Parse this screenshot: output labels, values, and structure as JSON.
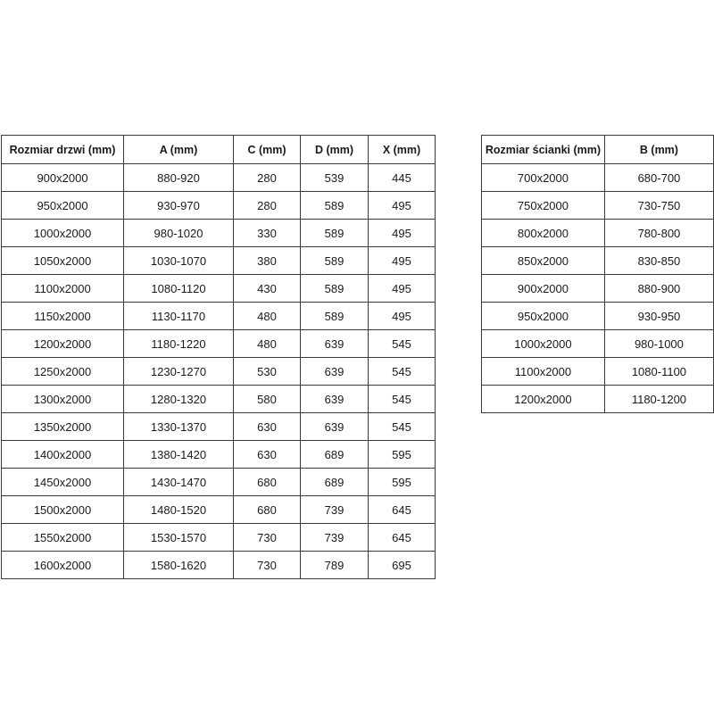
{
  "door_table": {
    "headers": [
      "Rozmiar drzwi (mm)",
      "A (mm)",
      "C (mm)",
      "D (mm)",
      "X (mm)"
    ],
    "rows": [
      [
        "900x2000",
        "880-920",
        "280",
        "539",
        "445"
      ],
      [
        "950x2000",
        "930-970",
        "280",
        "589",
        "495"
      ],
      [
        "1000x2000",
        "980-1020",
        "330",
        "589",
        "495"
      ],
      [
        "1050x2000",
        "1030-1070",
        "380",
        "589",
        "495"
      ],
      [
        "1100x2000",
        "1080-1120",
        "430",
        "589",
        "495"
      ],
      [
        "1150x2000",
        "1130-1170",
        "480",
        "589",
        "495"
      ],
      [
        "1200x2000",
        "1180-1220",
        "480",
        "639",
        "545"
      ],
      [
        "1250x2000",
        "1230-1270",
        "530",
        "639",
        "545"
      ],
      [
        "1300x2000",
        "1280-1320",
        "580",
        "639",
        "545"
      ],
      [
        "1350x2000",
        "1330-1370",
        "630",
        "639",
        "545"
      ],
      [
        "1400x2000",
        "1380-1420",
        "630",
        "689",
        "595"
      ],
      [
        "1450x2000",
        "1430-1470",
        "680",
        "689",
        "595"
      ],
      [
        "1500x2000",
        "1480-1520",
        "680",
        "739",
        "645"
      ],
      [
        "1550x2000",
        "1530-1570",
        "730",
        "739",
        "645"
      ],
      [
        "1600x2000",
        "1580-1620",
        "730",
        "789",
        "695"
      ]
    ]
  },
  "wall_table": {
    "headers": [
      "Rozmiar ścianki (mm)",
      "B (mm)"
    ],
    "rows": [
      [
        "700x2000",
        "680-700"
      ],
      [
        "750x2000",
        "730-750"
      ],
      [
        "800x2000",
        "780-800"
      ],
      [
        "850x2000",
        "830-850"
      ],
      [
        "900x2000",
        "880-900"
      ],
      [
        "950x2000",
        "930-950"
      ],
      [
        "1000x2000",
        "980-1000"
      ],
      [
        "1100x2000",
        "1080-1100"
      ],
      [
        "1200x2000",
        "1180-1200"
      ]
    ]
  }
}
